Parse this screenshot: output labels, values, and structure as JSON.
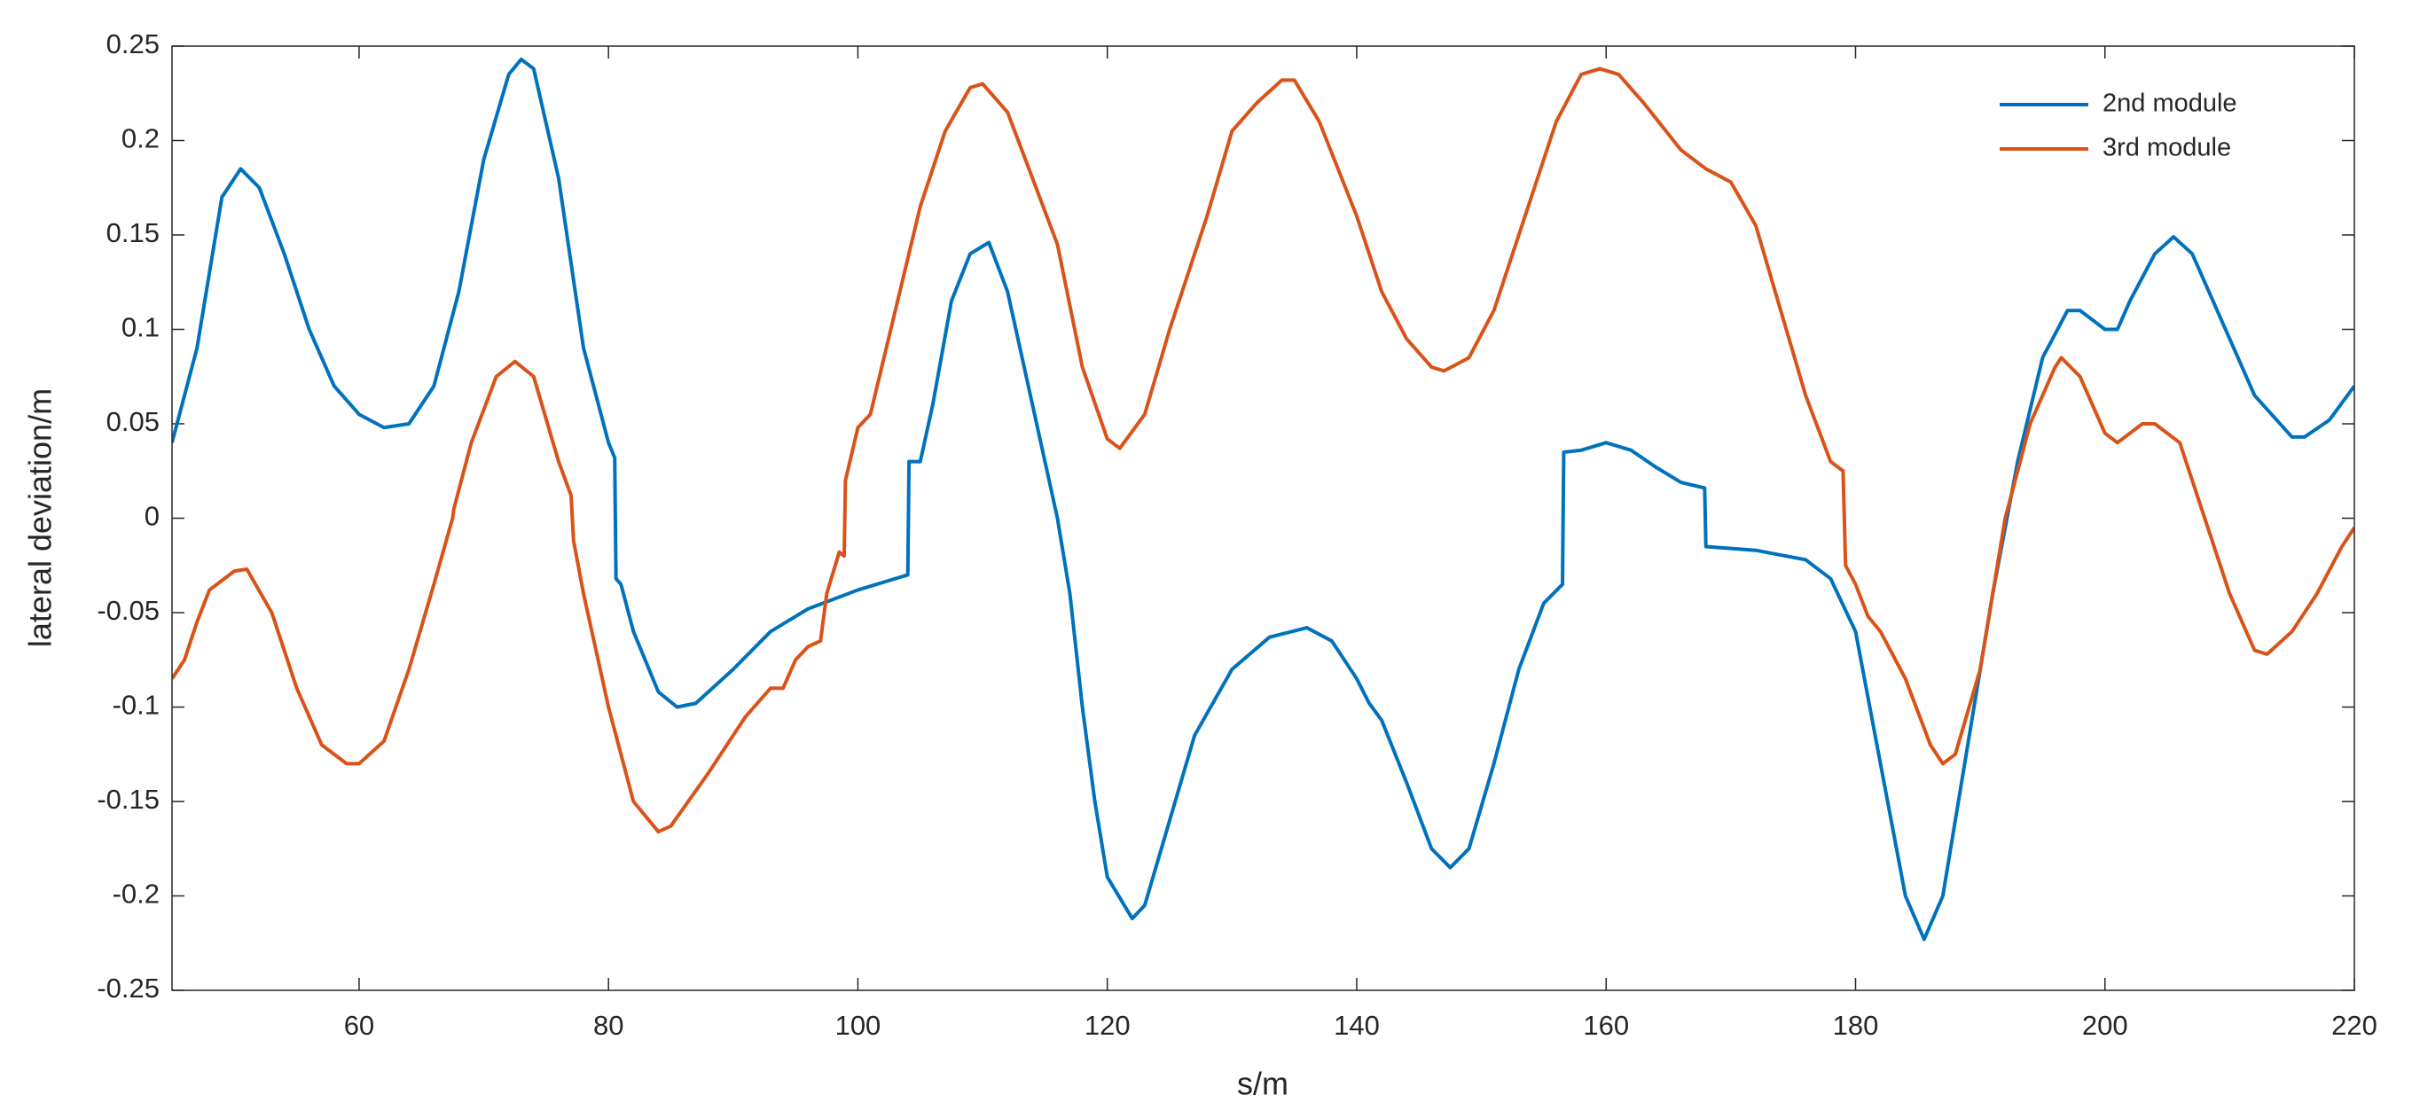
{
  "chart_data": {
    "type": "line",
    "xlabel": "s/m",
    "ylabel": "lateral deviation/m",
    "xlim": [
      45,
      220
    ],
    "xticks": [
      60,
      80,
      100,
      120,
      140,
      160,
      180,
      200,
      220
    ],
    "ylim": [
      -0.25,
      0.25
    ],
    "yticks": [
      -0.25,
      -0.2,
      -0.15,
      -0.1,
      -0.05,
      0,
      0.05,
      0.1,
      0.15,
      0.2,
      0.25
    ],
    "legend_position": "top-right",
    "series": [
      {
        "name": "2nd module",
        "color": "#0072bd",
        "x": [
          45,
          47,
          48,
          49,
          50.5,
          52,
          54,
          56,
          58,
          60,
          62,
          64,
          66,
          68,
          70,
          72,
          73,
          74,
          76,
          78,
          80,
          80.5,
          80.6,
          81,
          82,
          84,
          85.5,
          87,
          90,
          93,
          96,
          100,
          104,
          104.1,
          105,
          106,
          107.5,
          109,
          110.5,
          112,
          114,
          116,
          117,
          118,
          119,
          120,
          122,
          123,
          125,
          127,
          130,
          133,
          136,
          138,
          140,
          141,
          142,
          144,
          146,
          147.5,
          149,
          151,
          153,
          155,
          156.5,
          156.6,
          158,
          160,
          162,
          164,
          166,
          167.9,
          168,
          172,
          176,
          178,
          180,
          182,
          184,
          185.5,
          187,
          189,
          191,
          193,
          195,
          197,
          198,
          200,
          201,
          202,
          204,
          205.5,
          207,
          209,
          212,
          215,
          216,
          218,
          220
        ],
        "values": [
          0.04,
          0.09,
          0.13,
          0.17,
          0.185,
          0.175,
          0.14,
          0.1,
          0.07,
          0.055,
          0.048,
          0.05,
          0.07,
          0.12,
          0.19,
          0.235,
          0.243,
          0.238,
          0.18,
          0.09,
          0.04,
          0.032,
          -0.032,
          -0.035,
          -0.06,
          -0.092,
          -0.1,
          -0.098,
          -0.08,
          -0.06,
          -0.048,
          -0.038,
          -0.03,
          0.03,
          0.03,
          0.06,
          0.115,
          0.14,
          0.146,
          0.12,
          0.06,
          0.0,
          -0.04,
          -0.1,
          -0.15,
          -0.19,
          -0.212,
          -0.205,
          -0.16,
          -0.115,
          -0.08,
          -0.063,
          -0.058,
          -0.065,
          -0.085,
          -0.098,
          -0.107,
          -0.14,
          -0.175,
          -0.185,
          -0.175,
          -0.13,
          -0.08,
          -0.045,
          -0.035,
          0.035,
          0.036,
          0.04,
          0.036,
          0.027,
          0.019,
          0.016,
          -0.015,
          -0.017,
          -0.022,
          -0.032,
          -0.06,
          -0.13,
          -0.2,
          -0.223,
          -0.2,
          -0.12,
          -0.04,
          0.03,
          0.085,
          0.11,
          0.11,
          0.1,
          0.1,
          0.115,
          0.14,
          0.149,
          0.14,
          0.11,
          0.065,
          0.043,
          0.043,
          0.052,
          0.07
        ]
      },
      {
        "name": "3rd module",
        "color": "#d95319",
        "x": [
          45,
          46,
          47,
          48,
          50,
          51,
          53,
          55,
          57,
          59,
          60,
          62,
          64,
          66,
          67.5,
          67.6,
          69,
          71,
          72.5,
          74,
          76,
          77,
          77.2,
          78,
          80,
          82,
          84,
          85,
          88,
          91,
          93,
          94,
          95,
          96,
          97,
          97.5,
          98.5,
          98.9,
          99,
          100,
          101,
          103,
          105,
          107,
          109,
          110,
          112,
          114,
          116,
          118,
          120,
          121,
          123,
          125,
          128,
          130,
          132,
          134,
          135,
          137,
          140,
          142,
          144,
          146,
          147,
          149,
          151,
          154,
          156,
          158,
          159.5,
          161,
          163,
          166,
          168,
          170,
          172,
          174,
          176,
          178,
          179,
          179.2,
          180,
          181,
          182,
          184,
          186,
          187,
          188,
          190,
          192,
          194,
          196,
          196.5,
          198,
          200,
          201,
          203,
          204,
          206,
          207,
          208,
          210,
          212,
          213,
          215,
          217,
          219,
          220
        ],
        "values": [
          -0.085,
          -0.075,
          -0.055,
          -0.038,
          -0.028,
          -0.027,
          -0.05,
          -0.09,
          -0.12,
          -0.13,
          -0.13,
          -0.118,
          -0.08,
          -0.035,
          0.0,
          0.005,
          0.04,
          0.075,
          0.083,
          0.075,
          0.03,
          0.012,
          -0.012,
          -0.04,
          -0.1,
          -0.15,
          -0.166,
          -0.163,
          -0.135,
          -0.105,
          -0.09,
          -0.09,
          -0.075,
          -0.068,
          -0.065,
          -0.04,
          -0.018,
          -0.02,
          0.02,
          0.048,
          0.055,
          0.11,
          0.165,
          0.205,
          0.228,
          0.23,
          0.215,
          0.18,
          0.145,
          0.08,
          0.042,
          0.037,
          0.055,
          0.1,
          0.16,
          0.205,
          0.22,
          0.232,
          0.232,
          0.21,
          0.16,
          0.12,
          0.095,
          0.08,
          0.078,
          0.085,
          0.11,
          0.17,
          0.21,
          0.235,
          0.238,
          0.235,
          0.22,
          0.195,
          0.185,
          0.178,
          0.155,
          0.11,
          0.065,
          0.03,
          0.025,
          -0.025,
          -0.035,
          -0.052,
          -0.06,
          -0.085,
          -0.12,
          -0.13,
          -0.125,
          -0.08,
          0.0,
          0.05,
          0.08,
          0.085,
          0.075,
          0.045,
          0.04,
          0.05,
          0.05,
          0.04,
          0.02,
          0.0,
          -0.04,
          -0.07,
          -0.072,
          -0.06,
          -0.04,
          -0.015,
          -0.005
        ]
      }
    ]
  }
}
